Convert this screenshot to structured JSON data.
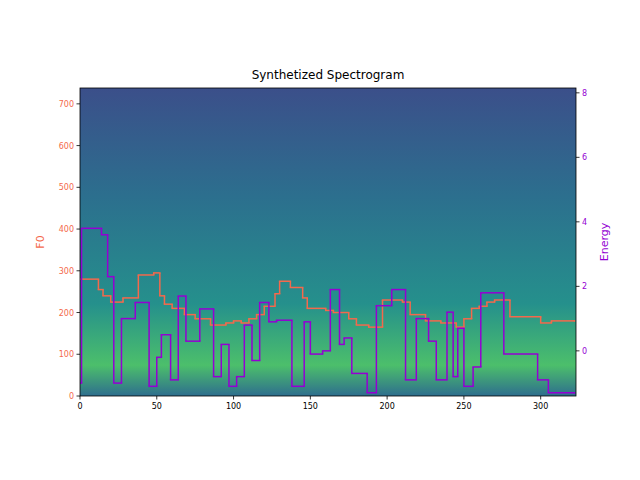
{
  "chart_data": {
    "type": "line",
    "title": "Synthetized Spectrogram",
    "line_style": "steps",
    "xlim": [
      0,
      323
    ],
    "xticks": [
      0,
      50,
      100,
      150,
      200,
      250,
      300
    ],
    "ylim": [
      0,
      738
    ],
    "yticks": [
      0,
      100,
      200,
      300,
      400,
      500,
      600,
      700
    ],
    "y2lim": [
      -1.4,
      8.15
    ],
    "y2ticks": [
      0,
      2,
      4,
      6,
      8
    ],
    "grid": false,
    "series": [
      {
        "name": "F0",
        "color": "#f4694c",
        "x": [
          0,
          12,
          15,
          20,
          28,
          38,
          48,
          52,
          55,
          60,
          68,
          75,
          85,
          95,
          100,
          105,
          110,
          115,
          120,
          127,
          130,
          137,
          145,
          148,
          160,
          165,
          175,
          180,
          188,
          197,
          210,
          215,
          225,
          235,
          245,
          250,
          255,
          260,
          265,
          270,
          280,
          300,
          307,
          322
        ],
        "values": [
          280,
          255,
          240,
          225,
          235,
          290,
          295,
          240,
          220,
          210,
          195,
          185,
          170,
          175,
          180,
          175,
          185,
          195,
          215,
          245,
          275,
          260,
          235,
          210,
          205,
          200,
          185,
          170,
          165,
          230,
          225,
          195,
          180,
          175,
          165,
          185,
          210,
          215,
          225,
          230,
          190,
          175,
          180,
          180
        ]
      },
      {
        "name": "Energy",
        "color": "#9400d3",
        "axis": "y2",
        "x": [
          0,
          1,
          14,
          18,
          22,
          27,
          36,
          45,
          50,
          53,
          59,
          64,
          69,
          78,
          87,
          92,
          97,
          102,
          107,
          112,
          117,
          123,
          128,
          138,
          146,
          150,
          158,
          163,
          169,
          172,
          177,
          187,
          193,
          203,
          212,
          219,
          227,
          232,
          239,
          243,
          246,
          250,
          256,
          261,
          276,
          298,
          305,
          322
        ],
        "values": [
          -1.0,
          3.8,
          3.6,
          2.3,
          -1.0,
          1.0,
          1.5,
          -1.1,
          -0.2,
          0.5,
          -0.9,
          1.7,
          0.3,
          1.3,
          -0.8,
          0.2,
          -1.1,
          -0.8,
          0.8,
          -0.3,
          1.5,
          0.9,
          0.95,
          -1.1,
          0.9,
          -0.1,
          0.0,
          1.9,
          0.2,
          0.4,
          -0.7,
          -1.3,
          1.4,
          1.9,
          -0.9,
          1.0,
          0.3,
          -0.9,
          1.2,
          -0.8,
          0.7,
          -1.1,
          -0.5,
          1.8,
          -0.1,
          -0.9,
          -1.3,
          -1.3
        ]
      }
    ]
  }
}
